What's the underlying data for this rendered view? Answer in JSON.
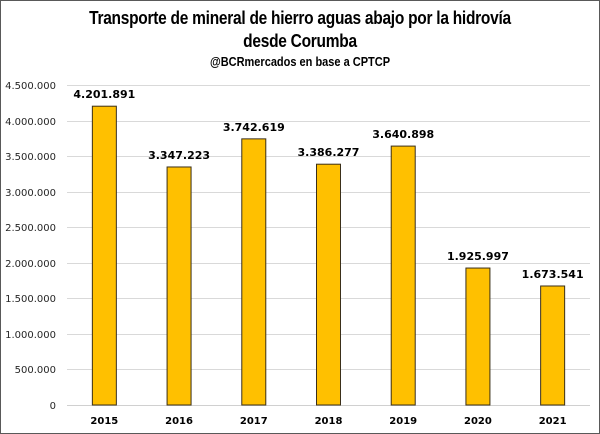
{
  "chart_data": {
    "type": "bar",
    "title": "Transporte de mineral de hierro aguas abajo por la hidrovía desde Corumba",
    "title_lines": [
      "Transporte de mineral de hierro aguas abajo por la hidrovía",
      "desde Corumba"
    ],
    "subtitle": "@BCRmercados en base a CPTCP",
    "xlabel": "",
    "ylabel": "",
    "categories": [
      "2015",
      "2016",
      "2017",
      "2018",
      "2019",
      "2020",
      "2021"
    ],
    "values": [
      4201891,
      3347223,
      3742619,
      3386277,
      3640898,
      1925997,
      1673541
    ],
    "data_labels": [
      "4.201.891",
      "3.347.223",
      "3.742.619",
      "3.386.277",
      "3.640.898",
      "1.925.997",
      "1.673.541"
    ],
    "ylim": [
      0,
      4500000
    ],
    "yticks": [
      0,
      500000,
      1000000,
      1500000,
      2000000,
      2500000,
      3000000,
      3500000,
      4000000,
      4500000
    ],
    "ytick_labels": [
      "0",
      "500.000",
      "1.000.000",
      "1.500.000",
      "2.000.000",
      "2.500.000",
      "3.000.000",
      "3.500.000",
      "4.000.000",
      "4.500.000"
    ],
    "grid": true,
    "legend": "none",
    "colors": {
      "bar_fill": "#FFC000",
      "bar_edge": "#3a2f1a",
      "grid": "#d9d9d9"
    }
  }
}
